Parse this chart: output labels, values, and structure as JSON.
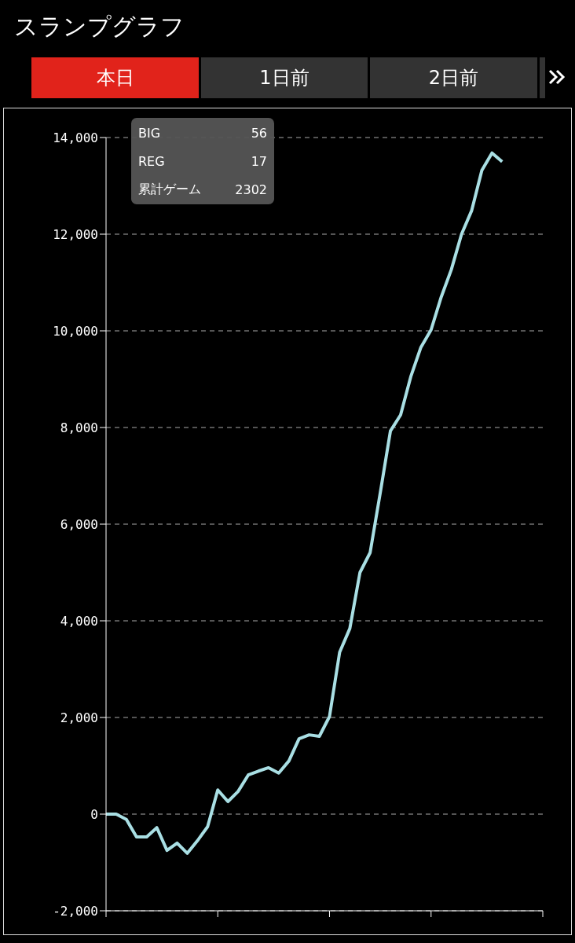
{
  "chart_data": {
    "type": "line",
    "title": "スランプグラフ",
    "annotations": [
      "本日",
      "1日前",
      "2日前",
      "BIG",
      "56",
      "REG",
      "17",
      "累計ゲーム",
      "2302"
    ],
    "categories": [
      null,
      null,
      null,
      null,
      null,
      null,
      null,
      null,
      null,
      null,
      null,
      null,
      null,
      null,
      null,
      null,
      null,
      null,
      null,
      null,
      null,
      null,
      null,
      null,
      null,
      null,
      null,
      null,
      null,
      null,
      null,
      null,
      null,
      null,
      null,
      null,
      null,
      null,
      null,
      null,
      null,
      null,
      null,
      null
    ],
    "series": [
      {
        "color": "#a9dfe4",
        "values": [
          0,
          0,
          -110,
          -470,
          -470,
          -280,
          -750,
          -600,
          -810,
          -550,
          -260,
          500,
          260,
          470,
          810,
          890,
          960,
          850,
          1100,
          1560,
          1640,
          1610,
          2020,
          3350,
          3840,
          5000,
          5410,
          6650,
          7930,
          8260,
          9050,
          9660,
          10020,
          10700,
          11270,
          12000,
          12490,
          13320,
          13680,
          13500,
          null,
          null,
          null,
          null
        ]
      }
    ],
    "ylim": [
      -2000,
      14000
    ],
    "yticks": [
      {
        "value": -2000,
        "label": "-2,000"
      },
      {
        "value": 0,
        "label": "0"
      },
      {
        "value": 2000,
        "label": "2,000"
      },
      {
        "value": 4000,
        "label": "4,000"
      },
      {
        "value": 6000,
        "label": "6,000"
      },
      {
        "value": 8000,
        "label": "8,000"
      },
      {
        "value": 10000,
        "label": "10,000"
      },
      {
        "value": 12000,
        "label": "12,000"
      },
      {
        "value": 14000,
        "label": "14,000"
      }
    ],
    "grid": "y",
    "marker": "none",
    "line_style": "solid",
    "legend": false
  }
}
